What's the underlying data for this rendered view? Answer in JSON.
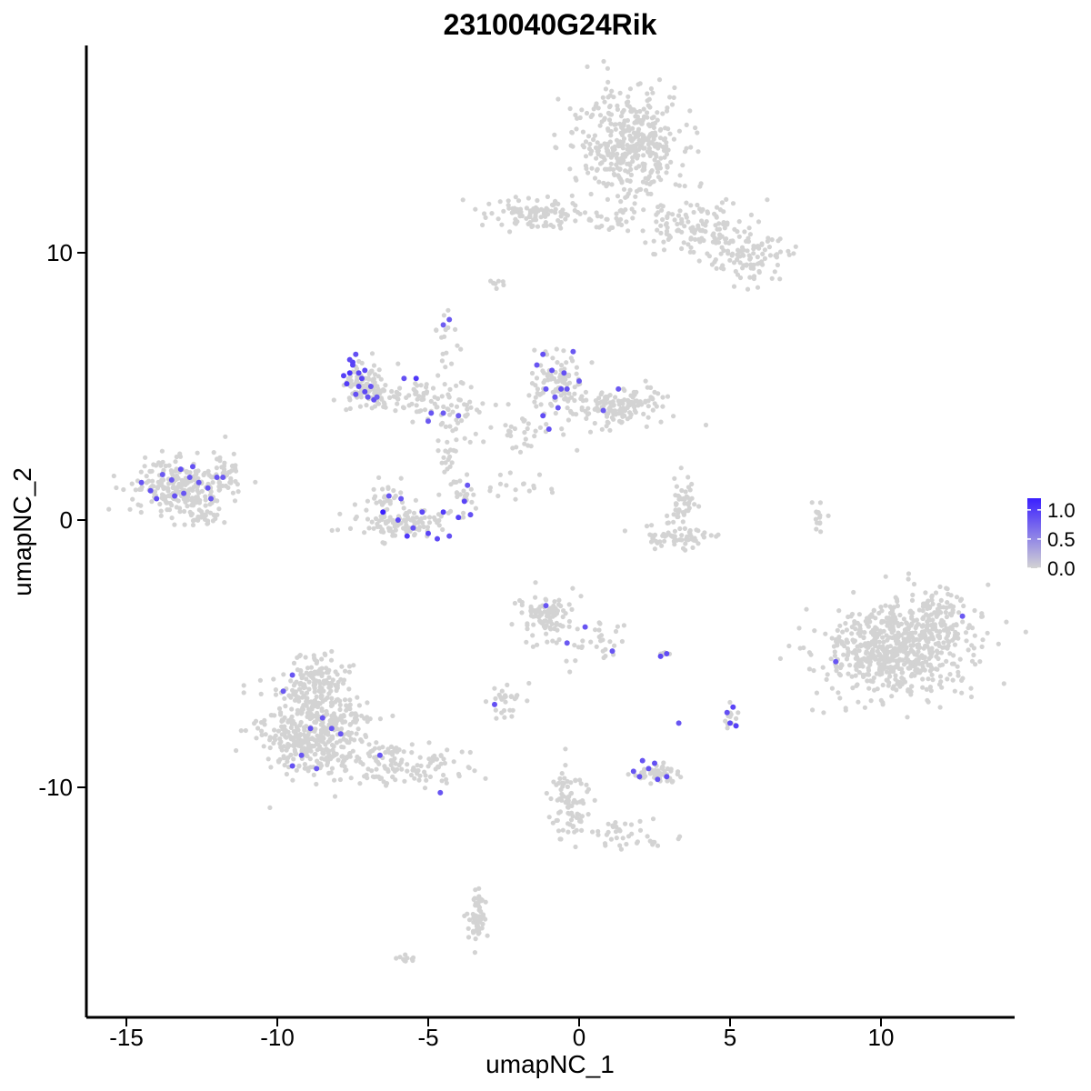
{
  "chart_data": {
    "type": "scatter",
    "title": "2310040G24Rik",
    "xlabel": "umapNC_1",
    "ylabel": "umapNC_2",
    "xlim": [
      -16.4,
      14.4
    ],
    "ylim": [
      -17.8,
      17.8
    ],
    "xticks": [
      -15,
      -10,
      -5,
      0,
      5,
      10
    ],
    "xtick_labels": [
      "-15",
      "-10",
      "-5",
      "0",
      "5",
      "10"
    ],
    "yticks": [
      -10,
      0,
      10
    ],
    "ytick_labels": [
      "-10",
      "0",
      "10"
    ],
    "grid": false,
    "legend": {
      "position": "right",
      "type": "colorbar",
      "min": 0.0,
      "max": 1.2,
      "ticks": [
        0.0,
        0.5,
        1.0
      ],
      "tick_labels": [
        "0.0",
        "0.5",
        "1.0"
      ],
      "low_color": "#D3D3D3",
      "high_color": "#3A1FFF"
    },
    "clusters": [
      {
        "cx": 1.7,
        "cy": 14.0,
        "sx": 1.1,
        "sy": 1.3,
        "n": 420
      },
      {
        "cx": 4.0,
        "cy": 11.0,
        "sx": 1.2,
        "sy": 0.7,
        "n": 130
      },
      {
        "cx": 5.6,
        "cy": 9.8,
        "sx": 0.7,
        "sy": 0.6,
        "n": 90
      },
      {
        "cx": -1.6,
        "cy": 11.5,
        "sx": 1.0,
        "sy": 0.35,
        "n": 90
      },
      {
        "cx": 0.8,
        "cy": 11.2,
        "sx": 1.2,
        "sy": 0.3,
        "n": 40
      },
      {
        "cx": -13.3,
        "cy": 1.2,
        "sx": 1.0,
        "sy": 0.6,
        "n": 240
      },
      {
        "cx": -11.8,
        "cy": 1.8,
        "sx": 0.4,
        "sy": 0.6,
        "n": 40
      },
      {
        "cx": -12.3,
        "cy": 0.1,
        "sx": 0.4,
        "sy": 0.2,
        "n": 25
      },
      {
        "cx": -7.1,
        "cy": 5.0,
        "sx": 0.5,
        "sy": 0.6,
        "n": 90
      },
      {
        "cx": -5.6,
        "cy": 4.6,
        "sx": 0.9,
        "sy": 0.4,
        "n": 70
      },
      {
        "cx": -4.1,
        "cy": 4.0,
        "sx": 0.6,
        "sy": 0.5,
        "n": 40
      },
      {
        "cx": -4.4,
        "cy": 6.2,
        "sx": 0.25,
        "sy": 1.0,
        "n": 20
      },
      {
        "cx": -4.3,
        "cy": 2.4,
        "sx": 0.2,
        "sy": 0.6,
        "n": 18
      },
      {
        "cx": -5.7,
        "cy": -0.1,
        "sx": 1.0,
        "sy": 0.35,
        "n": 110
      },
      {
        "cx": -6.4,
        "cy": 0.8,
        "sx": 0.4,
        "sy": 0.6,
        "n": 25
      },
      {
        "cx": -3.9,
        "cy": 0.9,
        "sx": 0.35,
        "sy": 0.6,
        "n": 25
      },
      {
        "cx": -0.8,
        "cy": 5.2,
        "sx": 0.6,
        "sy": 0.7,
        "n": 90
      },
      {
        "cx": 1.3,
        "cy": 4.2,
        "sx": 1.2,
        "sy": 0.45,
        "n": 150
      },
      {
        "cx": -1.8,
        "cy": 3.2,
        "sx": 0.7,
        "sy": 0.4,
        "n": 30
      },
      {
        "cx": -2.1,
        "cy": 1.2,
        "sx": 0.9,
        "sy": 0.35,
        "n": 18
      },
      {
        "cx": 3.2,
        "cy": -0.6,
        "sx": 0.9,
        "sy": 0.3,
        "n": 60
      },
      {
        "cx": 3.4,
        "cy": 0.6,
        "sx": 0.3,
        "sy": 0.6,
        "n": 45
      },
      {
        "cx": 7.9,
        "cy": 0.2,
        "sx": 0.15,
        "sy": 0.5,
        "n": 14
      },
      {
        "cx": 10.5,
        "cy": -4.9,
        "sx": 1.5,
        "sy": 1.1,
        "n": 650
      },
      {
        "cx": 11.8,
        "cy": -3.6,
        "sx": 0.6,
        "sy": 0.7,
        "n": 90
      },
      {
        "cx": -1.1,
        "cy": -3.6,
        "sx": 0.6,
        "sy": 0.6,
        "n": 100
      },
      {
        "cx": 0.6,
        "cy": -4.6,
        "sx": 0.6,
        "sy": 0.5,
        "n": 30
      },
      {
        "cx": -2.4,
        "cy": -6.7,
        "sx": 0.35,
        "sy": 0.35,
        "n": 28
      },
      {
        "cx": 2.6,
        "cy": -9.5,
        "sx": 0.5,
        "sy": 0.2,
        "n": 55
      },
      {
        "cx": 5.1,
        "cy": -7.4,
        "sx": 0.15,
        "sy": 0.3,
        "n": 12
      },
      {
        "cx": 2.8,
        "cy": -5.0,
        "sx": 0.15,
        "sy": 0.1,
        "n": 6
      },
      {
        "cx": -8.9,
        "cy": -8.0,
        "sx": 1.1,
        "sy": 1.0,
        "n": 420
      },
      {
        "cx": -8.8,
        "cy": -6.1,
        "sx": 0.7,
        "sy": 0.7,
        "n": 130
      },
      {
        "cx": -5.8,
        "cy": -9.1,
        "sx": 1.3,
        "sy": 0.55,
        "n": 130
      },
      {
        "cx": -0.4,
        "cy": -10.6,
        "sx": 0.4,
        "sy": 0.9,
        "n": 80
      },
      {
        "cx": 1.5,
        "cy": -11.8,
        "sx": 0.9,
        "sy": 0.35,
        "n": 40
      },
      {
        "cx": -3.4,
        "cy": -15.0,
        "sx": 0.2,
        "sy": 0.8,
        "n": 60
      },
      {
        "cx": -5.7,
        "cy": -16.4,
        "sx": 0.2,
        "sy": 0.1,
        "n": 10
      },
      {
        "cx": -2.7,
        "cy": 8.8,
        "sx": 0.2,
        "sy": 0.15,
        "n": 8
      }
    ],
    "expressing_points": [
      [
        -7.4,
        6.2,
        0.6
      ],
      [
        -7.5,
        5.8,
        0.75
      ],
      [
        -7.6,
        5.5,
        0.95
      ],
      [
        -7.8,
        5.4,
        0.8
      ],
      [
        -7.7,
        5.1,
        0.85
      ],
      [
        -7.3,
        5.0,
        0.7
      ],
      [
        -7.1,
        4.8,
        0.7
      ],
      [
        -7.2,
        5.3,
        0.75
      ],
      [
        -7.0,
        4.6,
        0.6
      ],
      [
        -6.8,
        4.5,
        0.65
      ],
      [
        -7.5,
        5.9,
        0.8
      ],
      [
        -7.3,
        5.5,
        0.7
      ],
      [
        -6.9,
        5.0,
        0.6
      ],
      [
        -7.6,
        6.0,
        0.7
      ],
      [
        -7.4,
        4.7,
        0.6
      ],
      [
        -7.1,
        5.6,
        0.7
      ],
      [
        -6.7,
        4.6,
        0.5
      ],
      [
        -5.8,
        5.3,
        0.6
      ],
      [
        -5.4,
        5.3,
        0.9
      ],
      [
        -4.9,
        4.0,
        0.55
      ],
      [
        -5.0,
        3.7,
        0.5
      ],
      [
        -4.5,
        4.0,
        0.5
      ],
      [
        -4.3,
        7.5,
        0.5
      ],
      [
        -4.5,
        7.3,
        0.45
      ],
      [
        -4.0,
        3.9,
        0.45
      ],
      [
        -6.5,
        0.3,
        1.2
      ],
      [
        -6.3,
        0.9,
        0.55
      ],
      [
        -6.0,
        0.0,
        0.7
      ],
      [
        -5.5,
        -0.3,
        0.6
      ],
      [
        -5.0,
        -0.5,
        0.75
      ],
      [
        -4.7,
        -0.7,
        0.7
      ],
      [
        -4.0,
        0.1,
        0.8
      ],
      [
        -3.8,
        0.7,
        0.75
      ],
      [
        -3.6,
        0.2,
        0.6
      ],
      [
        -4.5,
        0.3,
        0.85
      ],
      [
        -5.2,
        0.3,
        0.7
      ],
      [
        -5.7,
        -0.6,
        0.9
      ],
      [
        -4.3,
        -0.6,
        0.6
      ],
      [
        -3.7,
        1.3,
        0.55
      ],
      [
        -5.9,
        0.8,
        0.55
      ],
      [
        -14.2,
        1.1,
        0.6
      ],
      [
        -14.0,
        0.8,
        0.65
      ],
      [
        -13.5,
        1.5,
        0.55
      ],
      [
        -13.2,
        1.9,
        0.6
      ],
      [
        -12.9,
        1.6,
        0.55
      ],
      [
        -13.8,
        1.7,
        0.5
      ],
      [
        -13.4,
        0.9,
        0.6
      ],
      [
        -12.6,
        1.4,
        0.55
      ],
      [
        -12.3,
        1.2,
        0.6
      ],
      [
        -12.0,
        1.6,
        0.55
      ],
      [
        -14.5,
        1.4,
        0.55
      ],
      [
        -12.8,
        2.0,
        0.6
      ],
      [
        -13.1,
        1.0,
        0.55
      ],
      [
        -12.2,
        0.8,
        0.5
      ],
      [
        -11.8,
        1.6,
        0.5
      ],
      [
        -1.2,
        6.2,
        0.6
      ],
      [
        -1.4,
        5.8,
        0.55
      ],
      [
        -0.9,
        5.6,
        0.6
      ],
      [
        -1.1,
        4.9,
        0.55
      ],
      [
        -0.6,
        4.9,
        0.6
      ],
      [
        -0.7,
        4.2,
        0.55
      ],
      [
        -1.2,
        3.9,
        0.65
      ],
      [
        -1.0,
        3.4,
        0.6
      ],
      [
        -0.4,
        4.9,
        0.55
      ],
      [
        0.0,
        5.2,
        0.5
      ],
      [
        -0.5,
        5.5,
        0.6
      ],
      [
        1.3,
        4.9,
        0.5
      ],
      [
        0.8,
        4.1,
        0.5
      ],
      [
        -0.8,
        4.6,
        0.5
      ],
      [
        -0.2,
        6.3,
        0.5
      ],
      [
        -1.1,
        -3.2,
        0.55
      ],
      [
        0.2,
        -4.0,
        0.55
      ],
      [
        1.1,
        -4.9,
        0.55
      ],
      [
        -0.4,
        -4.6,
        0.5
      ],
      [
        2.7,
        -5.1,
        0.7
      ],
      [
        2.9,
        -5.0,
        0.65
      ],
      [
        5.1,
        -7.0,
        0.75
      ],
      [
        5.2,
        -7.7,
        0.8
      ],
      [
        5.0,
        -7.6,
        0.7
      ],
      [
        4.9,
        -7.2,
        0.6
      ],
      [
        3.3,
        -7.6,
        0.55
      ],
      [
        2.0,
        -9.6,
        0.6
      ],
      [
        2.3,
        -9.3,
        0.55
      ],
      [
        2.6,
        -9.7,
        0.6
      ],
      [
        2.9,
        -9.6,
        0.65
      ],
      [
        1.8,
        -9.4,
        0.55
      ],
      [
        2.1,
        -9.0,
        0.55
      ],
      [
        2.5,
        -9.1,
        0.6
      ],
      [
        -9.5,
        -5.8,
        0.55
      ],
      [
        -8.5,
        -7.4,
        0.55
      ],
      [
        -8.9,
        -7.8,
        0.6
      ],
      [
        -8.2,
        -7.8,
        0.55
      ],
      [
        -9.2,
        -8.8,
        0.55
      ],
      [
        -9.5,
        -9.2,
        0.6
      ],
      [
        -8.7,
        -9.3,
        0.5
      ],
      [
        -7.9,
        -8.0,
        0.55
      ],
      [
        -6.6,
        -8.8,
        0.55
      ],
      [
        -9.8,
        -6.4,
        0.5
      ],
      [
        -4.6,
        -10.2,
        0.55
      ],
      [
        -2.8,
        -6.9,
        0.6
      ],
      [
        8.5,
        -5.3,
        0.55
      ],
      [
        12.7,
        -3.6,
        0.5
      ]
    ]
  }
}
